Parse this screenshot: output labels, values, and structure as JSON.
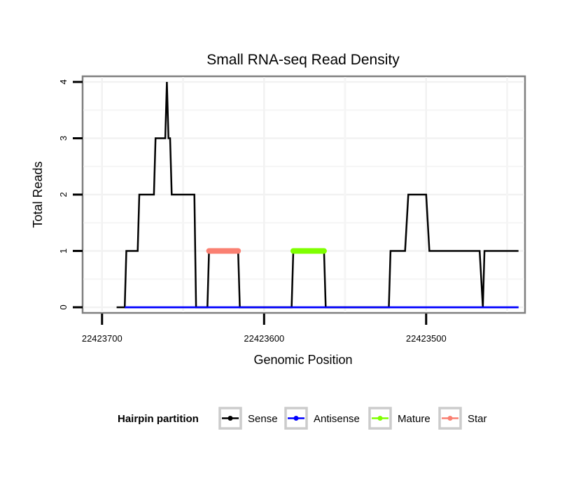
{
  "chart_data": {
    "type": "line",
    "title": "Small RNA-seq Read Density",
    "xlabel": "Genomic Position",
    "ylabel": "Total Reads",
    "x_reversed": true,
    "xlim": [
      22423712,
      22423439
    ],
    "ylim": [
      -0.1,
      4.1
    ],
    "x_ticks": [
      22423700,
      22423600,
      22423500
    ],
    "x_tick_labels": [
      "22423700",
      "22423600",
      "22423500"
    ],
    "y_ticks": [
      0,
      1,
      2,
      3,
      4
    ],
    "y_tick_labels": [
      "0",
      "1",
      "2",
      "3",
      "4"
    ],
    "grid": true,
    "legend": {
      "title": "Hairpin partition",
      "placement": "bottom",
      "entries": [
        {
          "label": "Sense",
          "color": "#000000"
        },
        {
          "label": "Antisense",
          "color": "#0000ff"
        },
        {
          "label": "Mature",
          "color": "#7fff00"
        },
        {
          "label": "Star",
          "color": "#fa8072"
        }
      ]
    },
    "series": [
      {
        "name": "Sense",
        "color": "#000000",
        "x": [
          22423691,
          22423686,
          22423685,
          22423678,
          22423677,
          22423668,
          22423667,
          22423661,
          22423660,
          22423659,
          22423658,
          22423657,
          22423643,
          22423642,
          22423635,
          22423634,
          22423616,
          22423615,
          22423583,
          22423582,
          22423563,
          22423562,
          22423523,
          22423522,
          22423513,
          22423511,
          22423500,
          22423498,
          22423467,
          22423465,
          22423464,
          22423443
        ],
        "y": [
          0,
          0,
          1,
          1,
          2,
          2,
          3,
          3,
          4,
          3,
          3,
          2,
          2,
          0,
          0,
          1,
          1,
          0,
          0,
          1,
          1,
          0,
          0,
          1,
          1,
          2,
          2,
          1,
          1,
          0,
          1,
          1
        ]
      },
      {
        "name": "Antisense",
        "color": "#0000ff",
        "x": [
          22423686,
          22423443
        ],
        "y": [
          0,
          0
        ]
      },
      {
        "name": "Mature",
        "color": "#7fff00",
        "x": [
          22423582,
          22423563
        ],
        "y": [
          1,
          1
        ]
      },
      {
        "name": "Star",
        "color": "#fa8072",
        "x": [
          22423634,
          22423616
        ],
        "y": [
          1,
          1
        ]
      }
    ]
  }
}
